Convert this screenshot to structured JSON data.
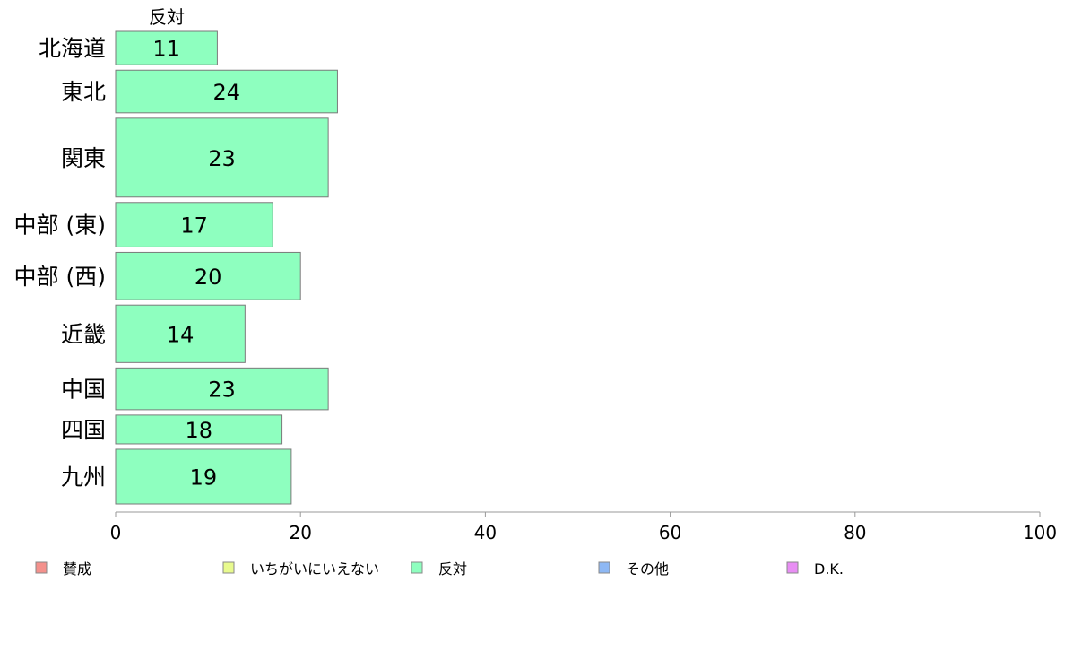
{
  "chart_data": {
    "type": "bar",
    "orientation": "horizontal",
    "stacked": true,
    "column_header": "反対",
    "categories": [
      "北海道",
      "東北",
      "関東",
      "中部 (東)",
      "中部 (西)",
      "近畿",
      "中国",
      "四国",
      "九州"
    ],
    "category_weights": [
      36,
      46,
      85,
      48,
      51,
      62,
      45,
      31,
      59
    ],
    "series": [
      {
        "name": "賛成",
        "color": "#f4918c",
        "values": [
          null,
          null,
          null,
          null,
          null,
          null,
          null,
          null,
          null
        ]
      },
      {
        "name": "いちがいにいえない",
        "color": "#e8fa8e",
        "values": [
          null,
          null,
          null,
          null,
          null,
          null,
          null,
          null,
          null
        ]
      },
      {
        "name": "反対",
        "color": "#8effbf",
        "values": [
          11,
          24,
          23,
          17,
          20,
          14,
          23,
          18,
          19
        ]
      },
      {
        "name": "その他",
        "color": "#8eb8f4",
        "values": [
          null,
          null,
          null,
          null,
          null,
          null,
          null,
          null,
          null
        ]
      },
      {
        "name": "D.K.",
        "color": "#e88ef4",
        "values": [
          null,
          null,
          null,
          null,
          null,
          null,
          null,
          null,
          null
        ]
      }
    ],
    "value_labels": [
      "11",
      "24",
      "23",
      "17",
      "20",
      "14",
      "23",
      "18",
      "19"
    ],
    "xlim": [
      0,
      100
    ],
    "x_ticks": [
      0,
      20,
      40,
      60,
      80,
      100
    ],
    "grid": false,
    "legend_position": "bottom"
  }
}
